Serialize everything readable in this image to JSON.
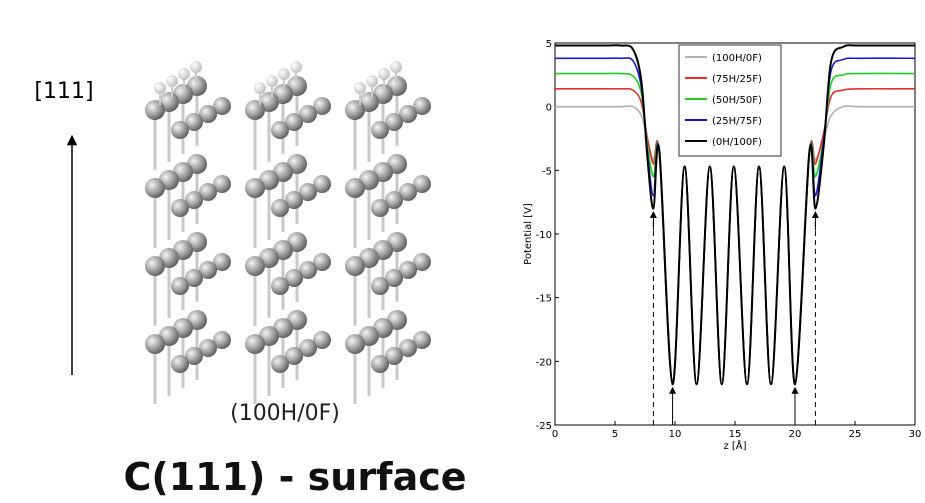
{
  "labels": {
    "direction": "[111]",
    "caption": "(100H/0F)",
    "heading": "C(111) - surface"
  },
  "chart_data": {
    "type": "line",
    "x_label": "z [Å]",
    "y_label": "Potential [V]",
    "xlim": [
      0,
      30
    ],
    "ylim": [
      -25,
      5
    ],
    "xticks": [
      0,
      5,
      10,
      15,
      20,
      25,
      30
    ],
    "yticks": [
      -25,
      -20,
      -15,
      -10,
      -5,
      0,
      5
    ],
    "legend": "upper center",
    "x": [
      0,
      4,
      5.5,
      6.5,
      7.2,
      7.7,
      8.2,
      8.7,
      9.8,
      10.8,
      11.8,
      12.9,
      13.9,
      14.9,
      16.0,
      17.0,
      18.0,
      19.1,
      20.0,
      21.2,
      21.7,
      22.4,
      23.0,
      24.0,
      25.5,
      30
    ],
    "series": [
      {
        "name": "(100H/0F)",
        "color": "#b0b0b0",
        "values": [
          0,
          0,
          0,
          0,
          -0.7,
          -2.5,
          -4.2,
          -3.8,
          -21.8,
          -4.7,
          -21.8,
          -4.7,
          -21.8,
          -4.7,
          -21.8,
          -4.7,
          -21.8,
          -4.7,
          -21.8,
          -3.8,
          -4.2,
          -2.5,
          -0.7,
          0,
          0,
          0
        ]
      },
      {
        "name": "(75H/25F)",
        "color": "#e03030",
        "values": [
          1.4,
          1.4,
          1.4,
          1.3,
          0.3,
          -2.5,
          -4.5,
          -3.8,
          -21.8,
          -4.7,
          -21.8,
          -4.7,
          -21.8,
          -4.7,
          -21.8,
          -4.7,
          -21.8,
          -4.7,
          -21.8,
          -3.8,
          -4.5,
          -2,
          0.8,
          1.3,
          1.4,
          1.4
        ]
      },
      {
        "name": "(50H/50F)",
        "color": "#22cc22",
        "values": [
          2.6,
          2.6,
          2.6,
          2.4,
          1,
          -3,
          -5.5,
          -3.7,
          -21.8,
          -4.7,
          -21.8,
          -4.7,
          -21.8,
          -4.7,
          -21.8,
          -4.7,
          -21.8,
          -4.7,
          -21.8,
          -3.7,
          -5.5,
          -2.5,
          1.8,
          2.5,
          2.6,
          2.6
        ]
      },
      {
        "name": "(25H/75F)",
        "color": "#1a1acc",
        "values": [
          3.8,
          3.8,
          3.8,
          3.6,
          1.5,
          -3.5,
          -7,
          -3.5,
          -21.8,
          -4.7,
          -21.8,
          -4.7,
          -21.8,
          -4.7,
          -21.8,
          -4.7,
          -21.8,
          -4.7,
          -21.8,
          -3.5,
          -7,
          -2.5,
          2.8,
          3.7,
          3.8,
          3.8
        ]
      },
      {
        "name": "(0H/100F)",
        "color": "#000000",
        "values": [
          4.8,
          4.8,
          4.8,
          4.5,
          2,
          -4,
          -8,
          -3.5,
          -21.8,
          -4.7,
          -21.8,
          -4.7,
          -21.8,
          -4.7,
          -21.8,
          -4.7,
          -21.8,
          -4.7,
          -21.8,
          -3.5,
          -8,
          -3,
          3.5,
          4.7,
          4.8,
          4.8
        ]
      }
    ]
  }
}
